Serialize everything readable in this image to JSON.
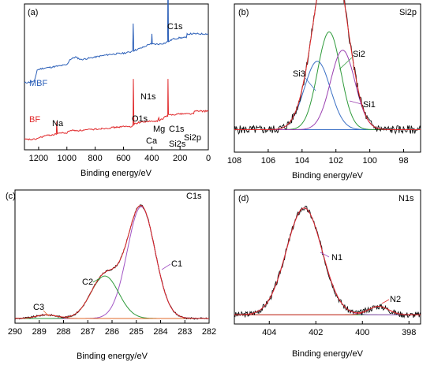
{
  "chart_data": [
    {
      "panel": "(a)",
      "type": "line",
      "title": "",
      "xlabel": "Binding energy/eV",
      "ylabel": "",
      "x_reversed": true,
      "xlim": [
        1300,
        0
      ],
      "x_ticks": [
        "1200",
        "1000",
        "800",
        "600",
        "400",
        "200",
        "0"
      ],
      "series": [
        {
          "name": "MBF",
          "color": "#2b5fb8",
          "points": [
            [
              1300,
              0.52
            ],
            [
              1230,
              0.53
            ],
            [
              1210,
              0.62
            ],
            [
              1180,
              0.63
            ],
            [
              1000,
              0.66
            ],
            [
              980,
              0.7
            ],
            [
              940,
              0.72
            ],
            [
              900,
              0.7
            ],
            [
              800,
              0.72
            ],
            [
              700,
              0.74
            ],
            [
              600,
              0.75
            ],
            [
              550,
              0.76
            ],
            [
              535,
              0.77
            ],
            [
              531,
              0.98
            ],
            [
              527,
              0.77
            ],
            [
              500,
              0.78
            ],
            [
              450,
              0.8
            ],
            [
              420,
              0.82
            ],
            [
              402,
              0.82
            ],
            [
              399,
              0.9
            ],
            [
              396,
              0.82
            ],
            [
              350,
              0.82
            ],
            [
              300,
              0.83
            ],
            [
              288,
              0.84
            ],
            [
              285,
              1.55
            ],
            [
              282,
              0.84
            ],
            [
              250,
              0.86
            ],
            [
              200,
              0.87
            ],
            [
              155,
              0.87
            ],
            [
              150,
              0.9
            ],
            [
              100,
              0.9
            ],
            [
              0,
              0.9
            ]
          ]
        },
        {
          "name": "BF",
          "color": "#e0282a",
          "points": [
            [
              1300,
              0.08
            ],
            [
              1230,
              0.08
            ],
            [
              1150,
              0.11
            ],
            [
              1075,
              0.12
            ],
            [
              1072,
              0.22
            ],
            [
              1068,
              0.13
            ],
            [
              1000,
              0.13
            ],
            [
              980,
              0.15
            ],
            [
              900,
              0.15
            ],
            [
              800,
              0.16
            ],
            [
              700,
              0.17
            ],
            [
              600,
              0.18
            ],
            [
              540,
              0.18
            ],
            [
              532,
              0.2
            ],
            [
              530,
              0.55
            ],
            [
              526,
              0.2
            ],
            [
              500,
              0.21
            ],
            [
              440,
              0.22
            ],
            [
              400,
              0.22
            ],
            [
              360,
              0.22
            ],
            [
              350,
              0.25
            ],
            [
              346,
              0.23
            ],
            [
              320,
              0.24
            ],
            [
              305,
              0.26
            ],
            [
              300,
              0.26
            ],
            [
              287,
              0.26
            ],
            [
              285,
              0.55
            ],
            [
              282,
              0.27
            ],
            [
              200,
              0.28
            ],
            [
              150,
              0.28
            ],
            [
              103,
              0.28
            ],
            [
              100,
              0.3
            ],
            [
              0,
              0.3
            ]
          ]
        }
      ],
      "annotations": [
        "C1s",
        "MBF",
        "N1s",
        "O1s",
        "BF",
        "Na",
        "Mg",
        "Ca",
        "C1s",
        "Si2p",
        "Si2s"
      ]
    },
    {
      "panel": "(b)",
      "type": "line",
      "title": "Si2p",
      "xlabel": "Binding energy/eV",
      "ylabel": "",
      "x_reversed": true,
      "xlim": [
        108,
        97
      ],
      "x_ticks": [
        "108",
        "106",
        "104",
        "102",
        "100",
        "98"
      ],
      "raw_envelope": [
        [
          108,
          0.1
        ],
        [
          105,
          0.11
        ],
        [
          104,
          0.2
        ],
        [
          103.5,
          0.42
        ],
        [
          103,
          0.7
        ],
        [
          102.6,
          0.93
        ],
        [
          102.3,
          1.0
        ],
        [
          102,
          0.98
        ],
        [
          101.6,
          0.8
        ],
        [
          101,
          0.45
        ],
        [
          100.5,
          0.22
        ],
        [
          100,
          0.12
        ],
        [
          99,
          0.1
        ],
        [
          97,
          0.1
        ]
      ],
      "components": [
        {
          "name": "Si3",
          "center": 103.1,
          "height": 0.56,
          "fwhm": 1.8,
          "color": "#3a6fc4"
        },
        {
          "name": "Si2",
          "center": 102.4,
          "height": 0.8,
          "fwhm": 1.6,
          "color": "#2e9a3a"
        },
        {
          "name": "Si1",
          "center": 101.6,
          "height": 0.65,
          "fwhm": 1.7,
          "color": "#9a3fb0"
        }
      ],
      "baseline": 0.1
    },
    {
      "panel": "(c)",
      "type": "line",
      "title": "C1s",
      "xlabel": "Binding energy/eV",
      "ylabel": "",
      "x_reversed": true,
      "xlim": [
        290,
        282
      ],
      "x_ticks": [
        "290",
        "289",
        "288",
        "287",
        "286",
        "285",
        "284",
        "283",
        "282"
      ],
      "components": [
        {
          "name": "C1",
          "center": 284.8,
          "height": 0.92,
          "fwhm": 1.35,
          "color": "#a154c4"
        },
        {
          "name": "C2",
          "center": 286.3,
          "height": 0.35,
          "fwhm": 1.35,
          "color": "#2e9a3a"
        },
        {
          "name": "C3",
          "center": 288.7,
          "height": 0.03,
          "fwhm": 1.0,
          "color": "#e06a2a"
        }
      ],
      "baseline": 0.0
    },
    {
      "panel": "(d)",
      "type": "line",
      "title": "N1s",
      "xlabel": "Binding energy/eV",
      "ylabel": "",
      "x_reversed": true,
      "xlim": [
        405.5,
        397.5
      ],
      "x_ticks": [
        "404",
        "402",
        "400",
        "398"
      ],
      "components": [
        {
          "name": "N1",
          "center": 402.5,
          "height": 0.88,
          "fwhm": 1.8,
          "color": "#a154c4"
        },
        {
          "name": "N2",
          "center": 399.3,
          "height": 0.07,
          "fwhm": 1.0,
          "color": "#e0282a"
        }
      ],
      "baseline": 0.03
    }
  ]
}
